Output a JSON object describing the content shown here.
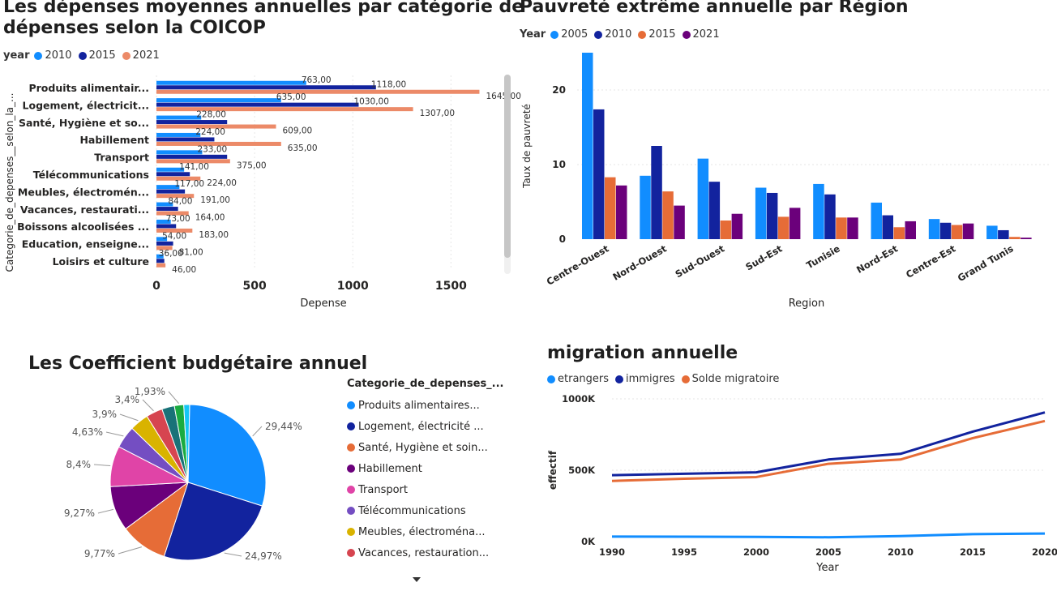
{
  "colors": {
    "c2005": "#118dff",
    "c2010": "#12239e",
    "c2015": "#e66c37",
    "c2021": "#6b007b",
    "c2010_light": "#118dff",
    "c2021_salmon": "#ec8a68"
  },
  "chart_data": [
    {
      "id": "depenses",
      "type": "bar",
      "orientation": "horizontal",
      "title": "Les dépenses moyennes annuelles par catégorie de dépenses selon la COICOP",
      "title_lines": [
        "Les dépenses moyennes annuelles par catégorie de",
        "dépenses selon la COICOP"
      ],
      "legend_title": "year",
      "xlabel": "Depense",
      "ylabel": "Categorie_de_depenses__selon_la_...",
      "xlim": [
        0,
        1800
      ],
      "xticks": [
        "0",
        "500",
        "1000",
        "1500"
      ],
      "categories": [
        "Produits alimentair...",
        "Logement, électricit...",
        "Santé, Hygiène et so...",
        "Habillement",
        "Transport",
        "Télécommunications",
        "Meubles, électromén...",
        "Vacances, restaurati...",
        "Boissons alcoolisées ...",
        "Education, enseigne...",
        "Loisirs et culture"
      ],
      "series": [
        {
          "name": "2010",
          "color": "#118dff",
          "values": [
            763,
            635,
            228,
            224,
            233,
            141,
            117,
            84,
            73,
            54,
            36
          ],
          "labels": [
            "763,00",
            "635,00",
            "228,00",
            "224,00",
            "233,00",
            "141,00",
            "117,00",
            "84,00",
            "73,00",
            "54,00",
            "36,00"
          ]
        },
        {
          "name": "2015",
          "color": "#12239e",
          "values": [
            1118,
            1030,
            360,
            295,
            360,
            170,
            145,
            110,
            100,
            85,
            40
          ],
          "labels": [
            "1118,00",
            "1030,00",
            "",
            "",
            "",
            "",
            "",
            "",
            "",
            "",
            ""
          ]
        },
        {
          "name": "2021",
          "color": "#ec8a68",
          "values": [
            1645,
            1307,
            609,
            635,
            375,
            224,
            191,
            164,
            183,
            81,
            46
          ],
          "labels": [
            "1645,00",
            "1307,00",
            "609,00",
            "635,00",
            "375,00",
            "224,00",
            "191,00",
            "164,00",
            "183,00",
            "81,00",
            "46,00"
          ]
        }
      ]
    },
    {
      "id": "pauvrete",
      "type": "bar",
      "orientation": "vertical",
      "title": "Pauvreté extrême annuelle par Région",
      "legend_title": "Year",
      "xlabel": "Region",
      "ylabel": "Taux de pauvreté",
      "ylim": [
        0,
        25
      ],
      "yticks": [
        "0",
        "10",
        "20"
      ],
      "categories": [
        "Centre-Ouest",
        "Nord-Ouest",
        "Sud-Ouest",
        "Sud-Est",
        "Tunisie",
        "Nord-Est",
        "Centre-Est",
        "Grand Tunis"
      ],
      "series": [
        {
          "name": "2005",
          "color": "#118dff",
          "values": [
            25.0,
            8.5,
            10.8,
            6.9,
            7.4,
            4.9,
            2.7,
            1.8
          ]
        },
        {
          "name": "2010",
          "color": "#12239e",
          "values": [
            17.4,
            12.5,
            7.7,
            6.2,
            6.0,
            3.2,
            2.2,
            1.2
          ]
        },
        {
          "name": "2015",
          "color": "#e66c37",
          "values": [
            8.3,
            6.4,
            2.5,
            3.0,
            2.9,
            1.6,
            1.9,
            0.3
          ]
        },
        {
          "name": "2021",
          "color": "#6b007b",
          "values": [
            7.2,
            4.5,
            3.4,
            4.2,
            2.9,
            2.4,
            2.1,
            0.2
          ]
        }
      ]
    },
    {
      "id": "coefficient",
      "type": "pie",
      "title": "Les Coefficient budgétaire annuel",
      "legend_title": "Categorie_de_depenses_...",
      "slices": [
        {
          "name": "Produits   alimentaires...",
          "value": 29.44,
          "label": "29,44%",
          "color": "#118dff"
        },
        {
          "name": "Logement, électricité ...",
          "value": 24.97,
          "label": "24,97%",
          "color": "#12239e"
        },
        {
          "name": "Santé, Hygiène et soin...",
          "value": 9.77,
          "label": "9,77%",
          "color": "#e66c37"
        },
        {
          "name": "Habillement",
          "value": 9.27,
          "label": "9,27%",
          "color": "#6b007b"
        },
        {
          "name": "Transport",
          "value": 8.4,
          "label": "8,4%",
          "color": "#e044a7"
        },
        {
          "name": "Télécommunications",
          "value": 4.63,
          "label": "4,63%",
          "color": "#744ec2"
        },
        {
          "name": "Meubles, électroména...",
          "value": 3.9,
          "label": "3,9%",
          "color": "#d9b300"
        },
        {
          "name": "Vacances, restauration...",
          "value": 3.4,
          "label": "3,4%",
          "color": "#d64550"
        },
        {
          "name": "",
          "value": 2.6,
          "label": "",
          "color": "#197278"
        },
        {
          "name": "",
          "value": 1.93,
          "label": "1,93%",
          "color": "#1aab40"
        },
        {
          "name": "",
          "value": 1.2,
          "label": "",
          "color": "#15c6f4"
        }
      ]
    },
    {
      "id": "migration",
      "type": "line",
      "title": "migration annuelle",
      "xlabel": "Year",
      "ylabel": "effectif",
      "ylim": [
        0,
        1000000
      ],
      "yticks": [
        "0K",
        "500K",
        "1000K"
      ],
      "x": [
        1990,
        1995,
        2000,
        2005,
        2010,
        2015,
        2020
      ],
      "xticks": [
        "1990",
        "1995",
        "2000",
        "2005",
        "2010",
        "2015",
        "2020"
      ],
      "series": [
        {
          "name": "etrangers",
          "color": "#118dff",
          "values": [
            35000,
            34000,
            33000,
            30000,
            38000,
            52000,
            56000
          ]
        },
        {
          "name": "immigres",
          "color": "#12239e",
          "values": [
            465000,
            475000,
            485000,
            575000,
            615000,
            770000,
            905000
          ]
        },
        {
          "name": "Solde migratoire",
          "color": "#e66c37",
          "values": [
            425000,
            440000,
            452000,
            545000,
            575000,
            725000,
            845000
          ]
        }
      ]
    }
  ]
}
